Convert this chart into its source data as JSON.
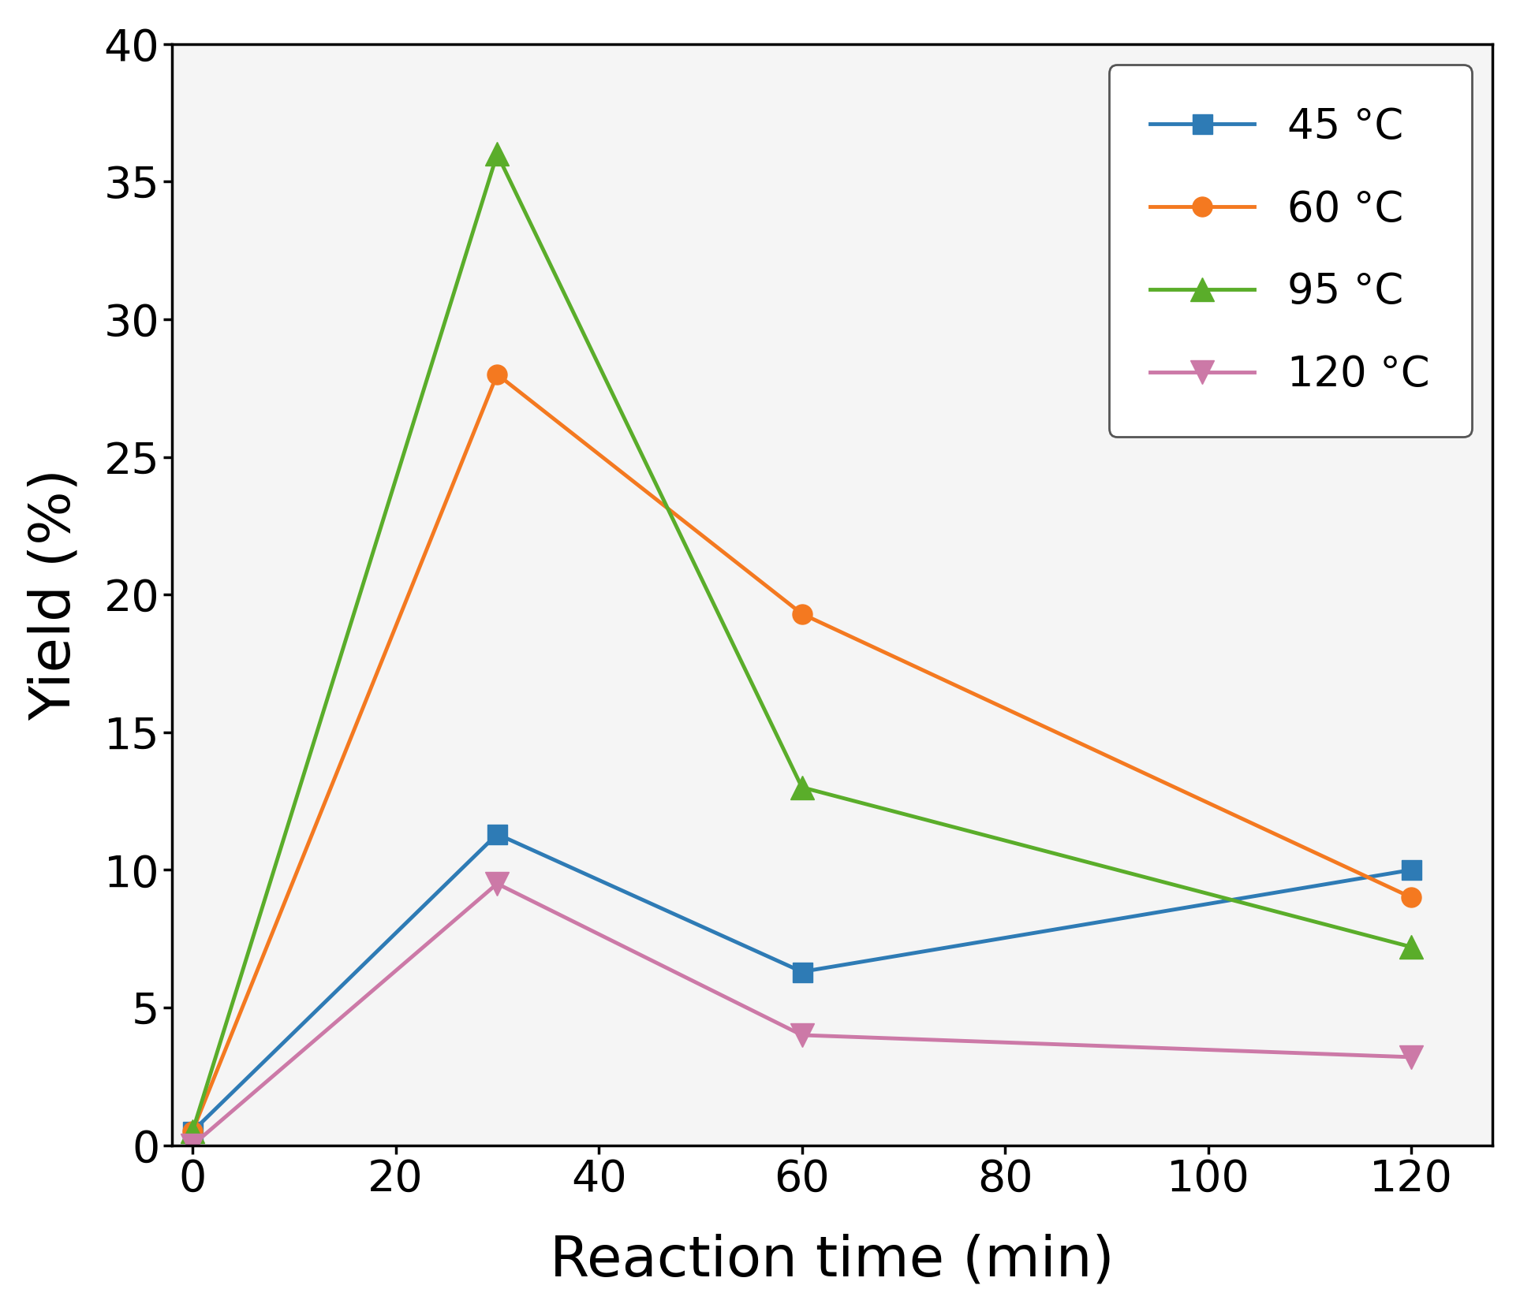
{
  "series": [
    {
      "label": "45 °C",
      "color": "#2e7bb5",
      "marker": "s",
      "x": [
        0,
        30,
        60,
        120
      ],
      "y": [
        0.5,
        11.3,
        6.3,
        10.0
      ]
    },
    {
      "label": "60 °C",
      "color": "#f47920",
      "marker": "o",
      "x": [
        0,
        30,
        60,
        120
      ],
      "y": [
        0.5,
        28.0,
        19.3,
        9.0
      ]
    },
    {
      "label": "95 °C",
      "color": "#5aad2a",
      "marker": "^",
      "x": [
        0,
        30,
        60,
        120
      ],
      "y": [
        0.5,
        36.0,
        13.0,
        7.2
      ]
    },
    {
      "label": "120 °C",
      "color": "#cc79a7",
      "marker": "v",
      "x": [
        0,
        30,
        60,
        120
      ],
      "y": [
        0.0,
        9.5,
        4.0,
        3.2
      ]
    }
  ],
  "xlabel": "Reaction time (min)",
  "ylabel": "Yield (%)",
  "xlim": [
    -2,
    128
  ],
  "ylim": [
    0,
    40
  ],
  "xticks": [
    0,
    20,
    40,
    60,
    80,
    100,
    120
  ],
  "yticks": [
    0,
    5,
    10,
    15,
    20,
    25,
    30,
    35,
    40
  ],
  "legend_loc": "upper right",
  "background_color": "#ffffff",
  "plot_bg_color": "#f5f5f5",
  "xlabel_fontsize": 52,
  "ylabel_fontsize": 52,
  "tick_fontsize": 40,
  "legend_fontsize": 38,
  "linewidth": 3.5,
  "markersize": 18
}
